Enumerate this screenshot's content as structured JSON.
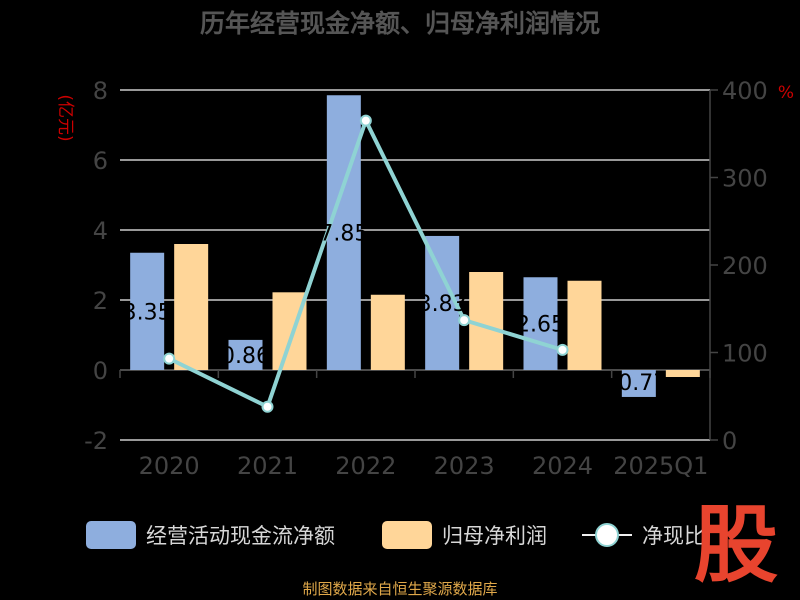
{
  "chart_data": {
    "type": "bar",
    "title": "历年经营现金净额、归母净利润情况",
    "categories": [
      "2020",
      "2021",
      "2022",
      "2023",
      "2024",
      "2025Q1"
    ],
    "y_left": {
      "label": "(亿元)",
      "ylim": [
        -2,
        8
      ],
      "ticks": [
        "-2",
        "0",
        "2",
        "4",
        "6",
        "8"
      ]
    },
    "y_right": {
      "label": "%",
      "ylim": [
        0,
        400
      ],
      "ticks": [
        "0",
        "100",
        "200",
        "300",
        "400"
      ]
    },
    "grid": true,
    "legend_position": "bottom",
    "series": [
      {
        "name": "经营活动现金流净额",
        "kind": "bar",
        "axis": "left",
        "color": "#8eaede",
        "values": [
          3.35,
          0.86,
          7.85,
          3.83,
          2.65,
          -0.77
        ],
        "labels": [
          "3.35",
          "0.86",
          "7.85",
          "3.83",
          "2.65",
          "-0.77"
        ]
      },
      {
        "name": "归母净利润",
        "kind": "bar",
        "axis": "left",
        "color": "#ffd699",
        "values": [
          3.6,
          2.22,
          2.15,
          2.8,
          2.55,
          -0.2
        ]
      },
      {
        "name": "净现比",
        "kind": "line",
        "axis": "right",
        "color": "#8fd3d3",
        "values": [
          93,
          38,
          365,
          137,
          103,
          null
        ]
      }
    ]
  },
  "source": "制图数据来自恒生聚源数据库",
  "logo": "股",
  "colors": {
    "title": "#555555",
    "axis_text": "#444444",
    "axis_label_red": "#cc0000",
    "grid": "#cccccc"
  }
}
